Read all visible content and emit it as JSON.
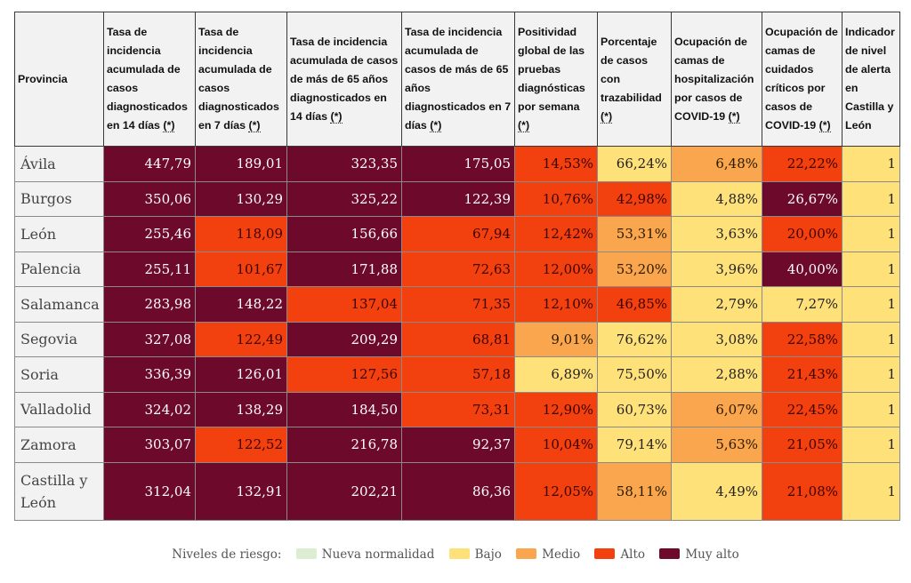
{
  "colors": {
    "muy_alto": "#6d0a2b",
    "alto": "#f3400f",
    "medio": "#f9a64e",
    "bajo": "#ffe17a",
    "nueva_normalidad": "#ddedd2"
  },
  "table": {
    "headers": {
      "provincia": "Provincia",
      "ia14": "Tasa de incidencia acumulada de casos diagnosticados en 14 días",
      "ia7": "Tasa de incidencia acumulada de casos diagnosticados en 7 días",
      "ia14_65": "Tasa de incidencia acumulada de casos de más de 65 años diagnosticados en 14 días",
      "ia7_65": "Tasa de incidencia acumulada de casos de más de 65 años diagnosticados en 7 días",
      "positividad": "Positividad global de las pruebas diagnósticas por semana",
      "trazabilidad": "Porcentaje de casos con trazabilidad",
      "hosp": "Ocupación de camas de hospitalización por casos de COVID-19",
      "uci": "Ocupación de camas de cuidados críticos por casos de COVID-19",
      "alerta": "Indicador de nivel de alerta en Castilla y León",
      "note_marker": "(*)"
    },
    "rows": [
      {
        "provincia": "Ávila",
        "ia14": "447,79",
        "ia7": "189,01",
        "ia14_65": "323,35",
        "ia7_65": "175,05",
        "positividad": "14,53%",
        "trazabilidad": "66,24%",
        "hosp": "6,48%",
        "uci": "22,22%",
        "alerta": "1"
      },
      {
        "provincia": "Burgos",
        "ia14": "350,06",
        "ia7": "130,29",
        "ia14_65": "325,22",
        "ia7_65": "122,39",
        "positividad": "10,76%",
        "trazabilidad": "42,98%",
        "hosp": "4,88%",
        "uci": "26,67%",
        "alerta": "1"
      },
      {
        "provincia": "León",
        "ia14": "255,46",
        "ia7": "118,09",
        "ia14_65": "156,66",
        "ia7_65": "67,94",
        "positividad": "12,42%",
        "trazabilidad": "53,31%",
        "hosp": "3,63%",
        "uci": "20,00%",
        "alerta": "1"
      },
      {
        "provincia": "Palencia",
        "ia14": "255,11",
        "ia7": "101,67",
        "ia14_65": "171,88",
        "ia7_65": "72,63",
        "positividad": "12,00%",
        "trazabilidad": "53,20%",
        "hosp": "3,96%",
        "uci": "40,00%",
        "alerta": "1"
      },
      {
        "provincia": "Salamanca",
        "ia14": "283,98",
        "ia7": "148,22",
        "ia14_65": "137,04",
        "ia7_65": "71,35",
        "positividad": "12,10%",
        "trazabilidad": "46,85%",
        "hosp": "2,79%",
        "uci": "7,27%",
        "alerta": "1"
      },
      {
        "provincia": "Segovia",
        "ia14": "327,08",
        "ia7": "122,49",
        "ia14_65": "209,29",
        "ia7_65": "68,81",
        "positividad": "9,01%",
        "trazabilidad": "76,62%",
        "hosp": "3,08%",
        "uci": "22,58%",
        "alerta": "1"
      },
      {
        "provincia": "Soria",
        "ia14": "336,39",
        "ia7": "126,01",
        "ia14_65": "127,56",
        "ia7_65": "57,18",
        "positividad": "6,89%",
        "trazabilidad": "75,50%",
        "hosp": "2,88%",
        "uci": "21,43%",
        "alerta": "1"
      },
      {
        "provincia": "Valladolid",
        "ia14": "324,02",
        "ia7": "138,29",
        "ia14_65": "184,50",
        "ia7_65": "73,31",
        "positividad": "12,90%",
        "trazabilidad": "60,73%",
        "hosp": "6,07%",
        "uci": "22,45%",
        "alerta": "1"
      },
      {
        "provincia": "Zamora",
        "ia14": "303,07",
        "ia7": "122,52",
        "ia14_65": "216,78",
        "ia7_65": "92,37",
        "positividad": "10,04%",
        "trazabilidad": "79,14%",
        "hosp": "5,63%",
        "uci": "21,05%",
        "alerta": "1"
      },
      {
        "provincia": "Castilla y León",
        "ia14": "312,04",
        "ia7": "132,91",
        "ia14_65": "202,21",
        "ia7_65": "86,36",
        "positividad": "12,05%",
        "trazabilidad": "58,11%",
        "hosp": "4,49%",
        "uci": "21,08%",
        "alerta": "1"
      }
    ],
    "levels": [
      [
        "muy",
        "muy",
        "muy",
        "muy",
        "alto",
        "bajo",
        "medio",
        "alto",
        "bajo"
      ],
      [
        "muy",
        "muy",
        "muy",
        "muy",
        "alto",
        "alto",
        "bajo",
        "muy",
        "bajo"
      ],
      [
        "muy",
        "alto",
        "muy",
        "alto",
        "alto",
        "medio",
        "bajo",
        "alto",
        "bajo"
      ],
      [
        "muy",
        "alto",
        "muy",
        "alto",
        "alto",
        "medio",
        "bajo",
        "muy",
        "bajo"
      ],
      [
        "muy",
        "muy",
        "alto",
        "alto",
        "alto",
        "alto",
        "bajo",
        "bajo",
        "bajo"
      ],
      [
        "muy",
        "alto",
        "muy",
        "alto",
        "medio",
        "bajo",
        "bajo",
        "alto",
        "bajo"
      ],
      [
        "muy",
        "muy",
        "alto",
        "alto",
        "bajo",
        "bajo",
        "bajo",
        "alto",
        "bajo"
      ],
      [
        "muy",
        "muy",
        "muy",
        "alto",
        "alto",
        "bajo",
        "medio",
        "alto",
        "bajo"
      ],
      [
        "muy",
        "alto",
        "muy",
        "muy",
        "alto",
        "bajo",
        "medio",
        "alto",
        "bajo"
      ],
      [
        "muy",
        "muy",
        "muy",
        "muy",
        "alto",
        "medio",
        "bajo",
        "alto",
        "bajo"
      ]
    ]
  },
  "legend": {
    "title": "Niveles de riesgo:",
    "items": [
      {
        "label": "Nueva normalidad",
        "color": "#ddedd2"
      },
      {
        "label": "Bajo",
        "color": "#ffe17a"
      },
      {
        "label": "Medio",
        "color": "#f9a64e"
      },
      {
        "label": "Alto",
        "color": "#f3400f"
      },
      {
        "label": "Muy alto",
        "color": "#6d0a2b"
      }
    ]
  }
}
